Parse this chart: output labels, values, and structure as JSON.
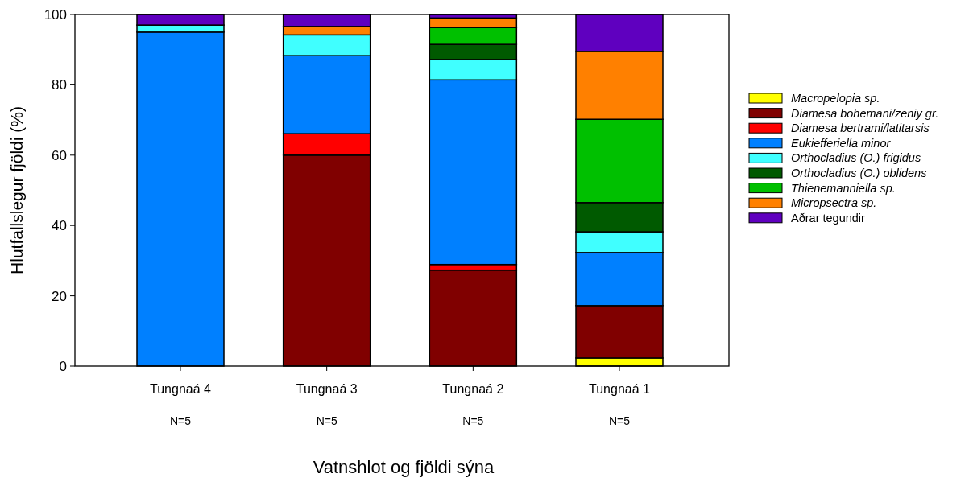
{
  "chart_data": {
    "type": "bar",
    "stacked": true,
    "xlabel": "Vatnshlot og fjöldi sýna",
    "ylabel": "Hlutfallslegur fjöldi (%)",
    "categories": [
      "Tungnaá 4",
      "Tungnaá 3",
      "Tungnaá 2",
      "Tungnaá 1"
    ],
    "series": [
      {
        "name": "Macropelopia sp.",
        "color": "#ffff00",
        "values": [
          0,
          0,
          0,
          2.3
        ]
      },
      {
        "name": "Diamesa bohemani/zeniy gr.",
        "color": "#800000",
        "values": [
          0,
          60,
          27.3,
          14.9
        ]
      },
      {
        "name": "Diamesa bertrami/latitarsis",
        "color": "#ff0000",
        "values": [
          0,
          6.1,
          1.6,
          0
        ]
      },
      {
        "name": "Eukiefferiella minor",
        "color": "#0080ff",
        "values": [
          95,
          22.2,
          52.5,
          15.1
        ]
      },
      {
        "name": "Orthocladius (O.) frigidus",
        "color": "#40ffff",
        "values": [
          2,
          5.9,
          5.8,
          5.9
        ]
      },
      {
        "name": "Orthocladius (O.) oblidens",
        "color": "#005a00",
        "values": [
          0,
          0,
          4.3,
          8.3
        ]
      },
      {
        "name": "Thienemanniella sp.",
        "color": "#00c000",
        "values": [
          0,
          0,
          4.8,
          23.7
        ]
      },
      {
        "name": "Micropsectra sp.",
        "color": "#ff8000",
        "values": [
          0,
          2.4,
          2.7,
          19.3
        ]
      },
      {
        "name": "Aðrar tegundir",
        "color": "#5f00bf",
        "values": [
          3,
          3.4,
          1,
          10.5
        ]
      }
    ],
    "ylim": [
      0,
      100
    ],
    "yticks": [
      0,
      20,
      40,
      60,
      80,
      100
    ],
    "grid": false,
    "legend": "right",
    "annotations": [
      "N=5",
      "N=5",
      "N=5",
      "N=5"
    ]
  }
}
